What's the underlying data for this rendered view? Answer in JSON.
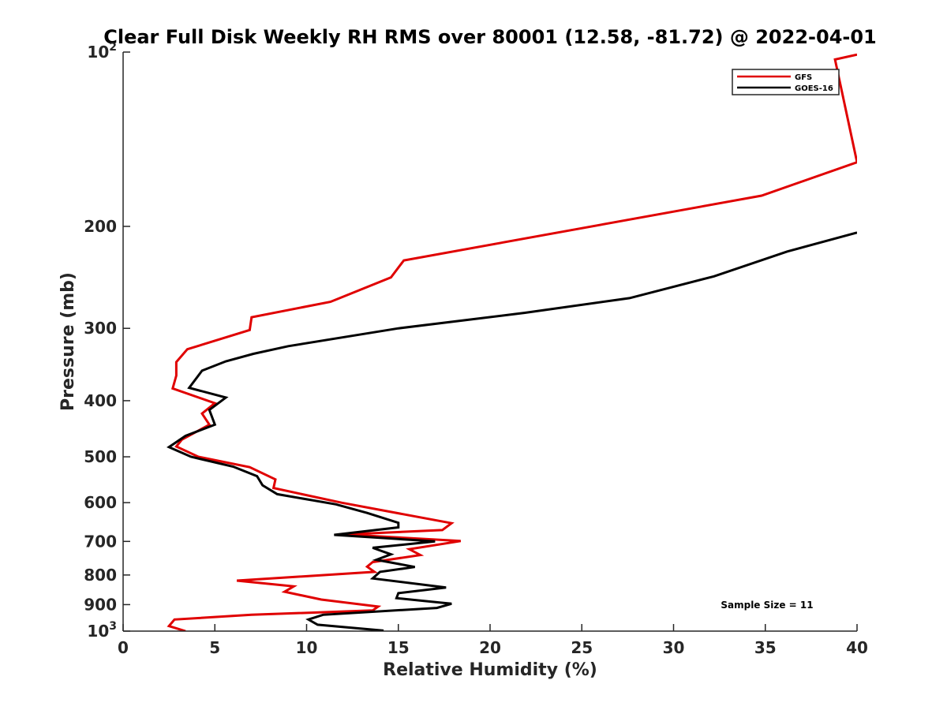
{
  "chart_data": {
    "type": "line",
    "title": "Clear Full Disk Weekly RH RMS over 80001 (12.58, -81.72) @ 2022-04-01",
    "xlabel": "Relative Humidity (%)",
    "ylabel": "Pressure (mb)",
    "xlim": [
      0,
      40
    ],
    "ylim": [
      100,
      1000
    ],
    "yscale": "log",
    "yreversed": true,
    "grid": false,
    "legend_position": "top-right",
    "xticks": [
      0,
      5,
      10,
      15,
      20,
      25,
      30,
      35,
      40
    ],
    "xtick_labels": [
      "0",
      "5",
      "10",
      "15",
      "20",
      "25",
      "30",
      "35",
      "40"
    ],
    "yticks": [
      100,
      200,
      300,
      400,
      500,
      600,
      700,
      800,
      900,
      1000
    ],
    "ytick_labels": [
      {
        "base": "10",
        "exp": "2"
      },
      {
        "base": "200",
        "exp": ""
      },
      {
        "base": "300",
        "exp": ""
      },
      {
        "base": "400",
        "exp": ""
      },
      {
        "base": "500",
        "exp": ""
      },
      {
        "base": "600",
        "exp": ""
      },
      {
        "base": "700",
        "exp": ""
      },
      {
        "base": "800",
        "exp": ""
      },
      {
        "base": "900",
        "exp": ""
      },
      {
        "base": "10",
        "exp": "3"
      }
    ],
    "annotation": "Sample Size = 11",
    "series": [
      {
        "name": "GFS",
        "color": "#e00000",
        "points": [
          [
            40.0,
            101
          ],
          [
            38.8,
            103
          ],
          [
            40.0,
            155
          ],
          [
            34.8,
            177
          ],
          [
            15.3,
            229
          ],
          [
            14.6,
            245
          ],
          [
            11.3,
            270
          ],
          [
            7.0,
            287
          ],
          [
            6.9,
            302
          ],
          [
            3.5,
            326
          ],
          [
            2.9,
            343
          ],
          [
            2.9,
            362
          ],
          [
            2.7,
            381
          ],
          [
            5.0,
            404
          ],
          [
            4.3,
            421
          ],
          [
            4.7,
            440
          ],
          [
            3.2,
            467
          ],
          [
            2.9,
            480
          ],
          [
            4.1,
            500
          ],
          [
            6.9,
            521
          ],
          [
            8.3,
            547
          ],
          [
            8.2,
            566
          ],
          [
            11.9,
            600
          ],
          [
            17.9,
            651
          ],
          [
            17.4,
            669
          ],
          [
            12.1,
            681
          ],
          [
            18.4,
            699
          ],
          [
            15.6,
            722
          ],
          [
            16.2,
            739
          ],
          [
            13.6,
            760
          ],
          [
            13.3,
            774
          ],
          [
            13.7,
            790
          ],
          [
            6.2,
            818
          ],
          [
            9.3,
            837
          ],
          [
            8.8,
            855
          ],
          [
            10.8,
            882
          ],
          [
            13.9,
            907
          ],
          [
            13.6,
            921
          ],
          [
            7.0,
            937
          ],
          [
            2.8,
            955
          ],
          [
            2.5,
            980
          ],
          [
            3.4,
            1000
          ]
        ]
      },
      {
        "name": "GOES-16",
        "color": "#000000",
        "points": [
          [
            40.0,
            205
          ],
          [
            36.2,
            221
          ],
          [
            32.2,
            244
          ],
          [
            27.6,
            266
          ],
          [
            21.9,
            282
          ],
          [
            15.0,
            300
          ],
          [
            9.0,
            322
          ],
          [
            7.1,
            332
          ],
          [
            5.6,
            342
          ],
          [
            4.3,
            355
          ],
          [
            3.6,
            380
          ],
          [
            5.6,
            395
          ],
          [
            4.7,
            415
          ],
          [
            5.0,
            440
          ],
          [
            3.4,
            460
          ],
          [
            2.5,
            481
          ],
          [
            3.7,
            500
          ],
          [
            6.0,
            520
          ],
          [
            7.3,
            540
          ],
          [
            7.6,
            560
          ],
          [
            8.4,
            580
          ],
          [
            11.6,
            604
          ],
          [
            13.3,
            625
          ],
          [
            15.0,
            650
          ],
          [
            15.0,
            662
          ],
          [
            11.5,
            682
          ],
          [
            17.0,
            700
          ],
          [
            13.6,
            718
          ],
          [
            14.6,
            737
          ],
          [
            13.8,
            753
          ],
          [
            15.9,
            775
          ],
          [
            14.0,
            790
          ],
          [
            13.6,
            811
          ],
          [
            17.6,
            841
          ],
          [
            15.0,
            860
          ],
          [
            14.9,
            877
          ],
          [
            17.9,
            897
          ],
          [
            17.1,
            912
          ],
          [
            10.9,
            937
          ],
          [
            10.1,
            955
          ],
          [
            10.6,
            975
          ],
          [
            14.2,
            998
          ]
        ]
      }
    ]
  }
}
